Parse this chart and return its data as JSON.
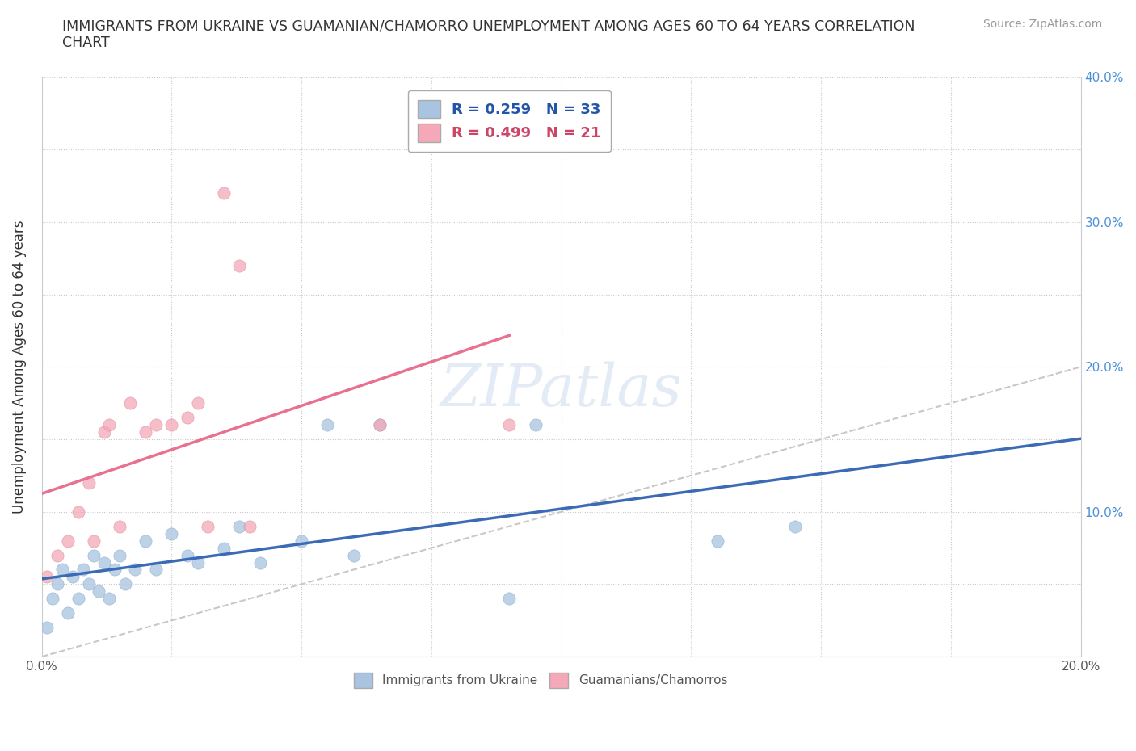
{
  "title": "IMMIGRANTS FROM UKRAINE VS GUAMANIAN/CHAMORRO UNEMPLOYMENT AMONG AGES 60 TO 64 YEARS CORRELATION\nCHART",
  "source": "Source: ZipAtlas.com",
  "ylabel": "Unemployment Among Ages 60 to 64 years",
  "xlim": [
    0.0,
    0.2
  ],
  "ylim": [
    0.0,
    0.4
  ],
  "xticks": [
    0.0,
    0.025,
    0.05,
    0.075,
    0.1,
    0.125,
    0.15,
    0.175,
    0.2
  ],
  "yticks": [
    0.0,
    0.05,
    0.1,
    0.15,
    0.2,
    0.25,
    0.3,
    0.35,
    0.4
  ],
  "ytick_labels_right": [
    "",
    "",
    "10.0%",
    "",
    "20.0%",
    "",
    "30.0%",
    "",
    "40.0%"
  ],
  "xtick_labels": [
    "0.0%",
    "",
    "",
    "",
    "",
    "",
    "",
    "",
    "20.0%"
  ],
  "ukraine_R": 0.259,
  "ukraine_N": 33,
  "guam_R": 0.499,
  "guam_N": 21,
  "ukraine_color": "#a8c4e0",
  "guam_color": "#f4a8b8",
  "ukraine_line_color": "#3b6bb5",
  "guam_line_color": "#e87090",
  "diagonal_color": "#c8c8c8",
  "watermark_color": "#d0dff0",
  "ukraine_x": [
    0.001,
    0.002,
    0.003,
    0.004,
    0.005,
    0.006,
    0.007,
    0.008,
    0.009,
    0.01,
    0.011,
    0.012,
    0.013,
    0.014,
    0.015,
    0.016,
    0.018,
    0.02,
    0.022,
    0.025,
    0.028,
    0.03,
    0.035,
    0.038,
    0.042,
    0.05,
    0.055,
    0.06,
    0.065,
    0.09,
    0.095,
    0.13,
    0.145
  ],
  "ukraine_y": [
    0.02,
    0.04,
    0.05,
    0.06,
    0.03,
    0.055,
    0.04,
    0.06,
    0.05,
    0.07,
    0.045,
    0.065,
    0.04,
    0.06,
    0.07,
    0.05,
    0.06,
    0.08,
    0.06,
    0.085,
    0.07,
    0.065,
    0.075,
    0.09,
    0.065,
    0.08,
    0.16,
    0.07,
    0.16,
    0.04,
    0.16,
    0.08,
    0.09
  ],
  "guam_x": [
    0.001,
    0.003,
    0.005,
    0.007,
    0.009,
    0.01,
    0.012,
    0.013,
    0.015,
    0.017,
    0.02,
    0.022,
    0.025,
    0.028,
    0.03,
    0.032,
    0.035,
    0.038,
    0.04,
    0.065,
    0.09
  ],
  "guam_y": [
    0.055,
    0.07,
    0.08,
    0.1,
    0.12,
    0.08,
    0.155,
    0.16,
    0.09,
    0.175,
    0.155,
    0.16,
    0.16,
    0.165,
    0.175,
    0.09,
    0.32,
    0.27,
    0.09,
    0.16,
    0.16
  ]
}
